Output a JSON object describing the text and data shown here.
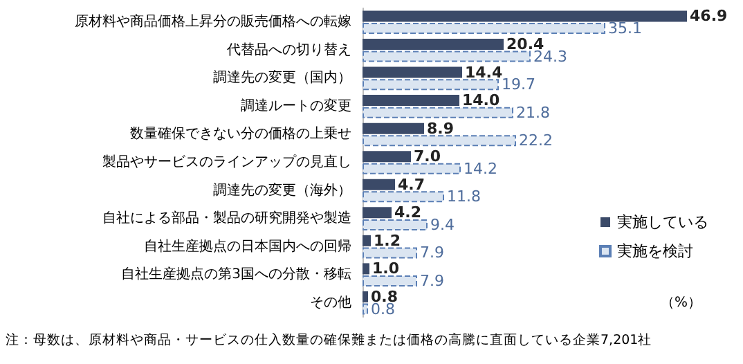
{
  "chart_data": {
    "type": "bar",
    "orientation": "horizontal",
    "categories": [
      "原材料や商品価格上昇分の販売価格への転嫁",
      "代替品への切り替え",
      "調達先の変更（国内）",
      "調達ルートの変更",
      "数量確保できない分の価格の上乗せ",
      "製品やサービスのラインアップの見直し",
      "調達先の変更（海外）",
      "自社による部品・製品の研究開発や製造",
      "自社生産拠点の日本国内への回帰",
      "自社生産拠点の第3国への分散・移転",
      "その他"
    ],
    "series": [
      {
        "name": "実施している",
        "color": "#3b4a68",
        "values": [
          46.9,
          20.4,
          14.4,
          14.0,
          8.9,
          7.0,
          4.7,
          4.2,
          1.2,
          1.0,
          0.8
        ],
        "value_labels": [
          "46.9",
          "20.4",
          "14.4",
          "14.0",
          "8.9",
          "7.0",
          "4.7",
          "4.2",
          "1.2",
          "1.0",
          "0.8"
        ]
      },
      {
        "name": "実施を検討",
        "color": "#dbe5f1",
        "values": [
          35.1,
          24.3,
          19.7,
          21.8,
          22.2,
          14.2,
          11.8,
          9.4,
          7.9,
          7.9,
          0.8
        ],
        "value_labels": [
          "35.1",
          "24.3",
          "19.7",
          "21.8",
          "22.2",
          "14.2",
          "11.8",
          "9.4",
          "7.9",
          "7.9",
          "0.8"
        ]
      }
    ],
    "legend": "right",
    "annotations": [
      "（%）",
      "注：母数は、原材料や商品・サービスの仕入数量の確保難または価格の高騰に直面している企業7,201社"
    ]
  }
}
